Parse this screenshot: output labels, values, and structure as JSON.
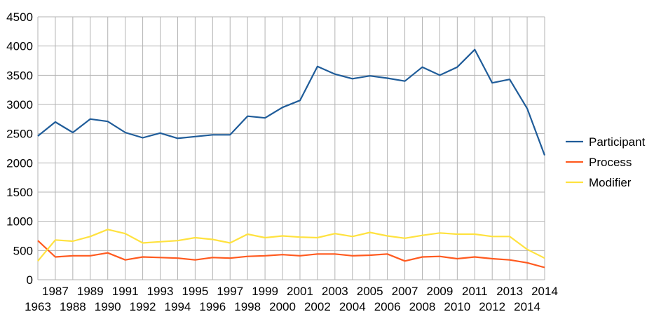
{
  "chart_data": {
    "type": "line",
    "x_tick_labels_row1": [
      "1987",
      "1989",
      "1991",
      "1993",
      "1995",
      "1997",
      "1999",
      "2001",
      "2003",
      "2005",
      "2007",
      "2009",
      "2011",
      "2013",
      "2014"
    ],
    "x_tick_labels_row2": [
      "1963",
      "1988",
      "1990",
      "1992",
      "1994",
      "1996",
      "1998",
      "2000",
      "2002",
      "2004",
      "2006",
      "2008",
      "2010",
      "2012",
      "2014"
    ],
    "y_ticks": [
      0,
      500,
      1000,
      1500,
      2000,
      2500,
      3000,
      3500,
      4000,
      4500
    ],
    "ylim": [
      0,
      4500
    ],
    "grid": true,
    "legend_position": "right",
    "series": [
      {
        "name": "Participant",
        "color": "#1f5c99",
        "values": [
          2460,
          2700,
          2520,
          2750,
          2710,
          2520,
          2430,
          2510,
          2420,
          2450,
          2480,
          2480,
          2800,
          2770,
          2950,
          3070,
          3650,
          3520,
          3440,
          3490,
          3450,
          3400,
          3640,
          3500,
          3640,
          3940,
          3370,
          3430,
          2930,
          2130
        ]
      },
      {
        "name": "Process",
        "color": "#ff5a1f",
        "values": [
          670,
          390,
          410,
          410,
          460,
          340,
          390,
          380,
          370,
          340,
          380,
          370,
          400,
          410,
          430,
          410,
          440,
          440,
          410,
          420,
          440,
          320,
          390,
          400,
          360,
          390,
          360,
          340,
          290,
          210
        ]
      },
      {
        "name": "Modifier",
        "color": "#ffe23f",
        "values": [
          320,
          680,
          660,
          740,
          860,
          790,
          630,
          650,
          670,
          720,
          690,
          630,
          780,
          720,
          750,
          730,
          720,
          790,
          740,
          810,
          750,
          710,
          760,
          800,
          780,
          780,
          740,
          740,
          520,
          370
        ]
      }
    ]
  }
}
